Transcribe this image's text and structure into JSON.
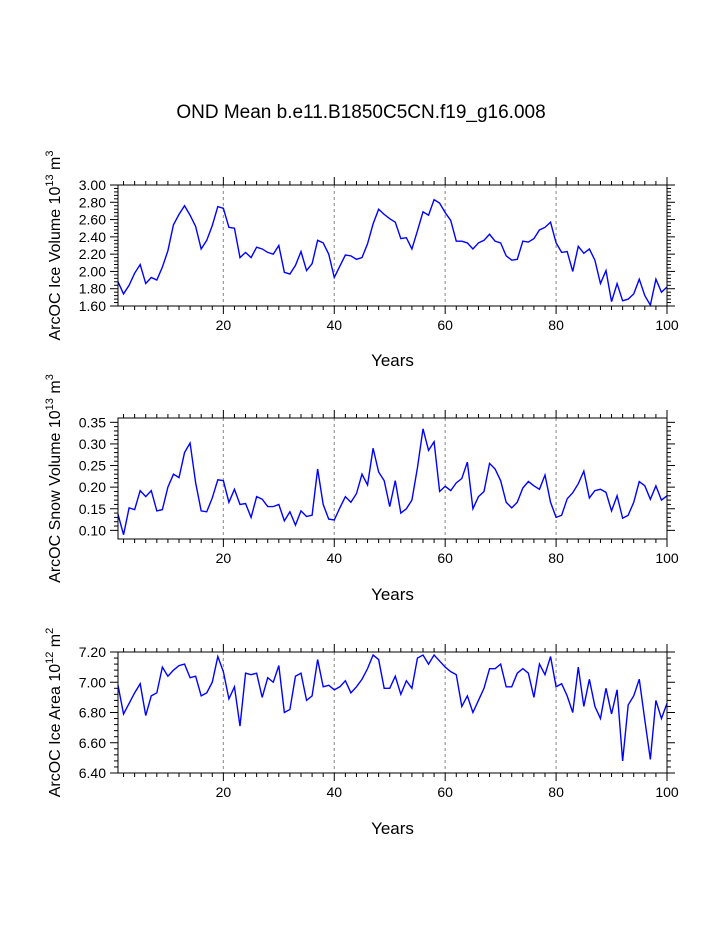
{
  "title": "OND Mean b.e11.B1850C5CN.f19_g16.008",
  "chart_data": [
    {
      "type": "line",
      "name": "ice-volume",
      "ylabel_main": "ArcOC Ice Volume 10",
      "ylabel_exp": "13",
      "ylabel_tail": " m",
      "ylabel_tail_exp": "3",
      "xlabel": "Years",
      "xlim": [
        1,
        100
      ],
      "ylim": [
        1.6,
        3.0
      ],
      "xticks": [
        20,
        40,
        60,
        80,
        100
      ],
      "xtick_labels": [
        "20",
        "40",
        "60",
        "80",
        "100"
      ],
      "yticks": [
        1.6,
        1.8,
        2.0,
        2.2,
        2.4,
        2.6,
        2.8,
        3.0
      ],
      "ytick_labels": [
        "1.60",
        "1.80",
        "2.00",
        "2.20",
        "2.40",
        "2.60",
        "2.80",
        "3.00"
      ],
      "ref_lines_x": [
        20,
        40,
        60,
        80
      ],
      "color": "#0000ff",
      "y": [
        1.88,
        1.74,
        1.84,
        1.98,
        2.08,
        1.86,
        1.93,
        1.9,
        2.05,
        2.24,
        2.54,
        2.66,
        2.76,
        2.65,
        2.52,
        2.26,
        2.36,
        2.53,
        2.75,
        2.73,
        2.51,
        2.5,
        2.16,
        2.22,
        2.16,
        2.28,
        2.26,
        2.22,
        2.2,
        2.3,
        1.99,
        1.97,
        2.07,
        2.23,
        2.01,
        2.09,
        2.36,
        2.33,
        2.2,
        1.93,
        2.06,
        2.19,
        2.18,
        2.14,
        2.16,
        2.32,
        2.55,
        2.72,
        2.66,
        2.61,
        2.57,
        2.38,
        2.39,
        2.26,
        2.47,
        2.69,
        2.65,
        2.83,
        2.79,
        2.68,
        2.59,
        2.35,
        2.35,
        2.33,
        2.26,
        2.33,
        2.36,
        2.43,
        2.35,
        2.33,
        2.18,
        2.13,
        2.14,
        2.35,
        2.34,
        2.38,
        2.48,
        2.51,
        2.57,
        2.33,
        2.22,
        2.23,
        2.0,
        2.29,
        2.21,
        2.26,
        2.13,
        1.86,
        2.01,
        1.65,
        1.86,
        1.66,
        1.68,
        1.74,
        1.91,
        1.72,
        1.61,
        1.91,
        1.76,
        1.82
      ]
    },
    {
      "type": "line",
      "name": "snow-volume",
      "ylabel_main": "ArcOC Snow Volume 10",
      "ylabel_exp": "13",
      "ylabel_tail": " m",
      "ylabel_tail_exp": "3",
      "xlabel": "Years",
      "xlim": [
        1,
        100
      ],
      "ylim": [
        0.08,
        0.36
      ],
      "xticks": [
        20,
        40,
        60,
        80,
        100
      ],
      "xtick_labels": [
        "20",
        "40",
        "60",
        "80",
        "100"
      ],
      "yticks": [
        0.1,
        0.15,
        0.2,
        0.25,
        0.3,
        0.35
      ],
      "ytick_labels": [
        "0.10",
        "0.15",
        "0.20",
        "0.25",
        "0.30",
        "0.35"
      ],
      "ref_lines_x": [
        20,
        40,
        60,
        80
      ],
      "color": "#0000ff",
      "y": [
        0.137,
        0.09,
        0.152,
        0.148,
        0.192,
        0.178,
        0.192,
        0.145,
        0.148,
        0.2,
        0.23,
        0.222,
        0.28,
        0.302,
        0.21,
        0.145,
        0.143,
        0.175,
        0.217,
        0.215,
        0.165,
        0.195,
        0.16,
        0.162,
        0.13,
        0.178,
        0.172,
        0.155,
        0.155,
        0.16,
        0.122,
        0.143,
        0.112,
        0.145,
        0.132,
        0.135,
        0.242,
        0.16,
        0.126,
        0.124,
        0.152,
        0.178,
        0.165,
        0.185,
        0.23,
        0.205,
        0.29,
        0.235,
        0.215,
        0.155,
        0.215,
        0.14,
        0.15,
        0.17,
        0.245,
        0.335,
        0.285,
        0.305,
        0.19,
        0.202,
        0.192,
        0.21,
        0.22,
        0.258,
        0.15,
        0.178,
        0.19,
        0.255,
        0.242,
        0.215,
        0.165,
        0.152,
        0.165,
        0.198,
        0.213,
        0.203,
        0.195,
        0.228,
        0.165,
        0.13,
        0.135,
        0.173,
        0.187,
        0.208,
        0.237,
        0.175,
        0.192,
        0.195,
        0.188,
        0.145,
        0.18,
        0.128,
        0.135,
        0.165,
        0.213,
        0.203,
        0.172,
        0.203,
        0.17,
        0.18
      ]
    },
    {
      "type": "line",
      "name": "ice-area",
      "ylabel_main": "ArcOC Ice Area 10",
      "ylabel_exp": "12",
      "ylabel_tail": " m",
      "ylabel_tail_exp": "2",
      "xlabel": "Years",
      "xlim": [
        1,
        100
      ],
      "ylim": [
        6.4,
        7.2
      ],
      "xticks": [
        20,
        40,
        60,
        80,
        100
      ],
      "xtick_labels": [
        "20",
        "40",
        "60",
        "80",
        "100"
      ],
      "yticks": [
        6.4,
        6.6,
        6.8,
        7.0,
        7.2
      ],
      "ytick_labels": [
        "6.40",
        "6.60",
        "6.80",
        "7.00",
        "7.20"
      ],
      "ref_lines_x": [
        20,
        40,
        60,
        80
      ],
      "color": "#0000ff",
      "y": [
        6.98,
        6.79,
        6.86,
        6.93,
        6.99,
        6.78,
        6.91,
        6.93,
        7.1,
        7.04,
        7.08,
        7.11,
        7.12,
        7.03,
        7.04,
        6.91,
        6.93,
        7.0,
        7.17,
        7.07,
        6.89,
        6.97,
        6.71,
        7.06,
        7.05,
        7.06,
        6.9,
        7.03,
        7.0,
        7.11,
        6.8,
        6.82,
        7.04,
        7.06,
        6.88,
        6.91,
        7.15,
        6.97,
        6.98,
        6.95,
        6.97,
        7.01,
        6.93,
        6.97,
        7.02,
        7.09,
        7.18,
        7.15,
        6.96,
        6.96,
        7.04,
        6.92,
        7.01,
        6.96,
        7.16,
        7.18,
        7.12,
        7.18,
        7.14,
        7.1,
        7.07,
        7.05,
        6.84,
        6.91,
        6.8,
        6.88,
        6.96,
        7.09,
        7.09,
        7.12,
        6.97,
        6.97,
        7.06,
        7.09,
        7.06,
        6.9,
        7.12,
        7.05,
        7.17,
        6.97,
        6.99,
        6.91,
        6.8,
        7.1,
        6.84,
        7.02,
        6.84,
        6.76,
        6.96,
        6.79,
        6.95,
        6.48,
        6.85,
        6.91,
        7.02,
        6.75,
        6.49,
        6.88,
        6.76,
        6.86
      ]
    }
  ]
}
